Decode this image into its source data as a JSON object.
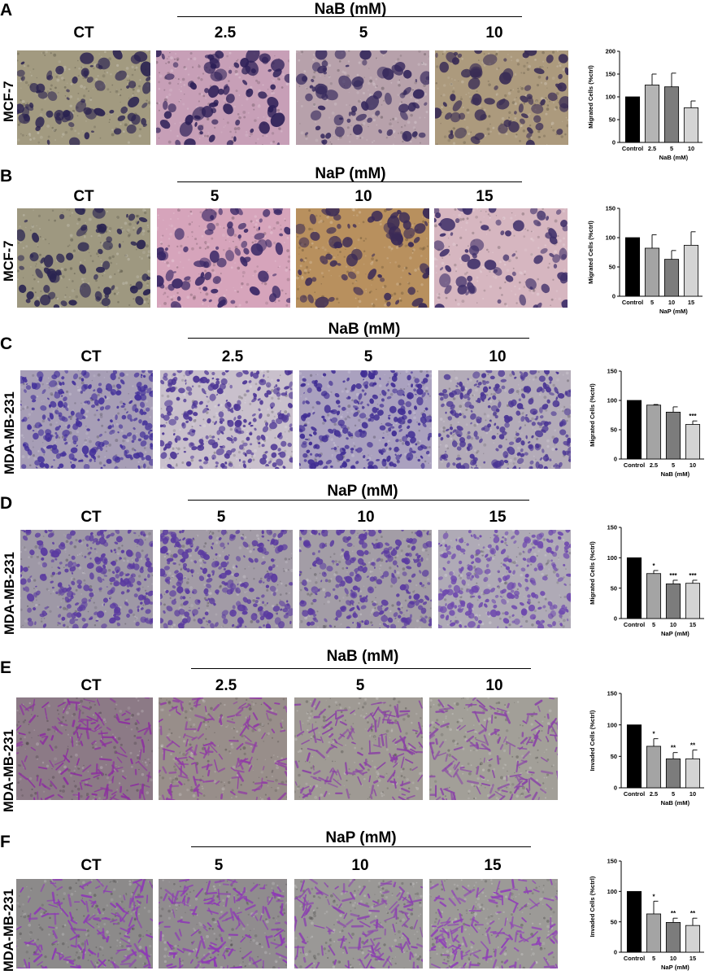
{
  "panels": [
    {
      "letter": "A",
      "treatment": "NaB (mM)",
      "row_label": "MCF-7",
      "columns": [
        "CT",
        "2.5",
        "5",
        "10"
      ]
    },
    {
      "letter": "B",
      "treatment": "NaP (mM)",
      "row_label": "MCF-7",
      "columns": [
        "CT",
        "5",
        "10",
        "15"
      ]
    },
    {
      "letter": "C",
      "treatment": "NaB (mM)",
      "row_label": "MDA-MB-231",
      "columns": [
        "CT",
        "2.5",
        "5",
        "10"
      ]
    },
    {
      "letter": "D",
      "treatment": "NaP (mM)",
      "row_label": "MDA-MB-231",
      "columns": [
        "CT",
        "5",
        "10",
        "15"
      ]
    },
    {
      "letter": "E",
      "treatment": "NaB (mM)",
      "row_label": "MDA-MB-231",
      "columns": [
        "CT",
        "2.5",
        "5",
        "10"
      ]
    },
    {
      "letter": "F",
      "treatment": "NaP (mM)",
      "row_label": "MDA-MB-231",
      "columns": [
        "CT",
        "5",
        "10",
        "15"
      ]
    }
  ],
  "micrograph_styles": [
    {
      "panel": "A",
      "images": [
        {
          "bg": "#a29a80",
          "stain": "#2b2350",
          "style": "blobs"
        },
        {
          "bg": "#c79fb7",
          "stain": "#2d1f57",
          "style": "blobs"
        },
        {
          "bg": "#b7a1ab",
          "stain": "#35285c",
          "style": "blobs"
        },
        {
          "bg": "#ac9a7d",
          "stain": "#3a2d55",
          "style": "blobs"
        }
      ]
    },
    {
      "panel": "B",
      "images": [
        {
          "bg": "#9e9880",
          "stain": "#2a2450",
          "style": "blobs"
        },
        {
          "bg": "#d6a4bb",
          "stain": "#3a2866",
          "style": "blobs"
        },
        {
          "bg": "#b8905e",
          "stain": "#3a2a56",
          "style": "blobs"
        },
        {
          "bg": "#d6b6c0",
          "stain": "#40306a",
          "style": "blobs"
        }
      ]
    },
    {
      "panel": "C",
      "images": [
        {
          "bg": "#a79eb6",
          "stain": "#43309a",
          "style": "dense"
        },
        {
          "bg": "#c9c0cc",
          "stain": "#4c3595",
          "style": "dense"
        },
        {
          "bg": "#aaa1bf",
          "stain": "#3f2c93",
          "style": "dense"
        },
        {
          "bg": "#b3abb8",
          "stain": "#4a3594",
          "style": "dense"
        }
      ]
    },
    {
      "panel": "D",
      "images": [
        {
          "bg": "#9e98a6",
          "stain": "#5a3aa0",
          "style": "dense"
        },
        {
          "bg": "#a29ba6",
          "stain": "#5a3aa0",
          "style": "dense"
        },
        {
          "bg": "#a39da6",
          "stain": "#5a3aa0",
          "style": "dense"
        },
        {
          "bg": "#afaab6",
          "stain": "#6e49ae",
          "style": "dense"
        }
      ]
    },
    {
      "panel": "E",
      "images": [
        {
          "bg": "#8c7a86",
          "stain": "#8c2fa0",
          "style": "fibers"
        },
        {
          "bg": "#988e8a",
          "stain": "#913aa6",
          "style": "fibers"
        },
        {
          "bg": "#9f9a94",
          "stain": "#8a3fa6",
          "style": "fibers"
        },
        {
          "bg": "#a29f98",
          "stain": "#8a44a8",
          "style": "fibers"
        }
      ]
    },
    {
      "panel": "F",
      "images": [
        {
          "bg": "#8c8a8a",
          "stain": "#8e39b6",
          "style": "fibers"
        },
        {
          "bg": "#908c8e",
          "stain": "#8e39b6",
          "style": "fibers"
        },
        {
          "bg": "#9a9896",
          "stain": "#8c42b0",
          "style": "fibers"
        },
        {
          "bg": "#9c9a97",
          "stain": "#9040b8",
          "style": "fibers"
        }
      ]
    }
  ],
  "chart_data": [
    {
      "panel": "A",
      "type": "bar",
      "ylabel": "Migrated Cells (%ctrl)",
      "xlabel": "NaB (mM)",
      "ylim": [
        0,
        200
      ],
      "yticks": [
        0,
        50,
        100,
        150,
        200
      ],
      "categories": [
        "Control",
        "2.5",
        "5",
        "10"
      ],
      "values": [
        100,
        126,
        122,
        76
      ],
      "errors": [
        0,
        24,
        30,
        15
      ],
      "significance": [
        "",
        "",
        "",
        ""
      ],
      "colors": [
        "#000000",
        "#b4b4b4",
        "#7c7c7c",
        "#d4d4d4"
      ]
    },
    {
      "panel": "B",
      "type": "bar",
      "ylabel": "Migrated Cells (%ctrl)",
      "xlabel": "NaP (mM)",
      "ylim": [
        0,
        150
      ],
      "yticks": [
        0,
        50,
        100,
        150
      ],
      "categories": [
        "Control",
        "5",
        "10",
        "15"
      ],
      "values": [
        100,
        82,
        63,
        87
      ],
      "errors": [
        0,
        23,
        15,
        23
      ],
      "significance": [
        "",
        "",
        "",
        ""
      ],
      "colors": [
        "#000000",
        "#a4a4a4",
        "#7c7c7c",
        "#d4d4d4"
      ]
    },
    {
      "panel": "C",
      "type": "bar",
      "ylabel": "Migrated Cells (%ctrl)",
      "xlabel": "NaB (mM)",
      "ylim": [
        0,
        150
      ],
      "yticks": [
        0,
        50,
        100,
        150
      ],
      "categories": [
        "Control",
        "2.5",
        "5",
        "10"
      ],
      "values": [
        100,
        92,
        80,
        59
      ],
      "errors": [
        0,
        1,
        9,
        6
      ],
      "significance": [
        "",
        "",
        "",
        "***"
      ],
      "colors": [
        "#000000",
        "#a4a4a4",
        "#7c7c7c",
        "#d4d4d4"
      ]
    },
    {
      "panel": "D",
      "type": "bar",
      "ylabel": "Migrated Cells (%ctrl)",
      "xlabel": "NaP (mM)",
      "ylim": [
        0,
        150
      ],
      "yticks": [
        0,
        50,
        100,
        150
      ],
      "categories": [
        "Control",
        "5",
        "10",
        "15"
      ],
      "values": [
        100,
        74,
        57,
        58
      ],
      "errors": [
        0,
        5,
        6,
        5
      ],
      "significance": [
        "",
        "*",
        "***",
        "***"
      ],
      "colors": [
        "#000000",
        "#a4a4a4",
        "#7c7c7c",
        "#d4d4d4"
      ]
    },
    {
      "panel": "E",
      "type": "bar",
      "ylabel": "Invaded Cells (%ctrl)",
      "xlabel": "NaB (mM)",
      "ylim": [
        0,
        150
      ],
      "yticks": [
        0,
        50,
        100,
        150
      ],
      "categories": [
        "Control",
        "2.5",
        "5",
        "10"
      ],
      "values": [
        100,
        66,
        46,
        46
      ],
      "errors": [
        0,
        12,
        10,
        14
      ],
      "significance": [
        "",
        "*",
        "**",
        "**"
      ],
      "colors": [
        "#000000",
        "#a4a4a4",
        "#7c7c7c",
        "#d4d4d4"
      ]
    },
    {
      "panel": "F",
      "type": "bar",
      "ylabel": "Invaded Cells (%ctrl)",
      "xlabel": "NaP (mM)",
      "ylim": [
        0,
        150
      ],
      "yticks": [
        0,
        50,
        100,
        150
      ],
      "categories": [
        "Control",
        "5",
        "10",
        "15"
      ],
      "values": [
        100,
        63,
        49,
        44
      ],
      "errors": [
        0,
        21,
        7,
        12
      ],
      "significance": [
        "",
        "*",
        "**",
        "**"
      ],
      "colors": [
        "#000000",
        "#a4a4a4",
        "#7c7c7c",
        "#d4d4d4"
      ]
    }
  ]
}
